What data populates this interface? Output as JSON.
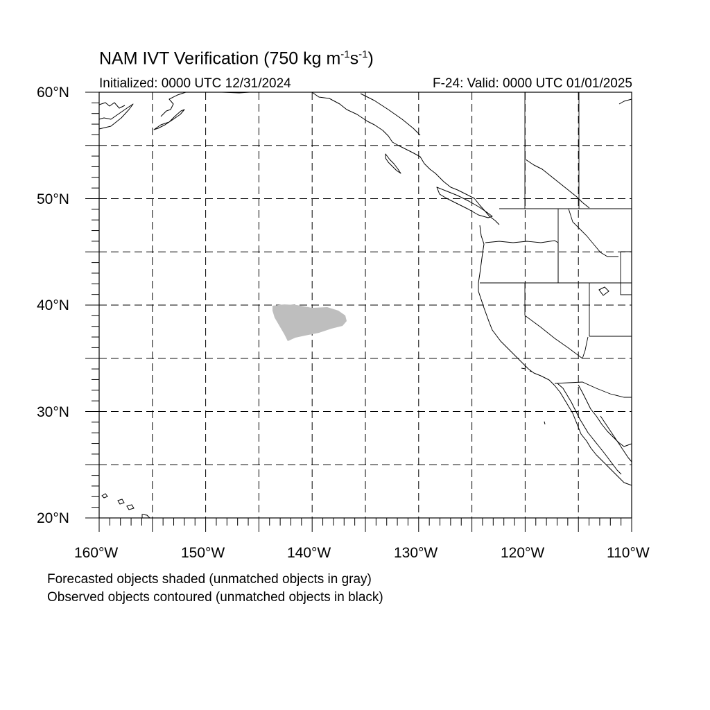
{
  "title": {
    "prefix": "NAM IVT Verification (750 kg m",
    "exp1": "-1",
    "middle": "s",
    "exp2": "-1",
    "suffix": ")"
  },
  "initialized": "Initialized: 0000 UTC 12/31/2024",
  "valid": "F-24: Valid: 0000 UTC 01/01/2025",
  "lat_labels": [
    "60°N",
    "50°N",
    "40°N",
    "30°N",
    "20°N"
  ],
  "lon_labels": [
    "160°W",
    "150°W",
    "140°W",
    "130°W",
    "120°W",
    "110°W"
  ],
  "notes": [
    "Forecasted objects shaded (unmatched objects in gray)",
    "Observed objects contoured (unmatched objects in black)"
  ],
  "colors": {
    "forecast_object": "#bebebe",
    "coastline": "#000000",
    "grid": "#000000"
  },
  "map_extent": {
    "lon_min": -160,
    "lon_max": -110,
    "lat_min": 20,
    "lat_max": 60
  },
  "grid_spacing_deg": 5
}
